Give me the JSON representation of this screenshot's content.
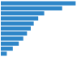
{
  "chart_data": {
    "type": "bar",
    "orientation": "horizontal",
    "values": [
      100,
      82,
      58,
      50,
      44,
      40,
      35,
      30,
      24,
      16,
      8
    ],
    "color": "#2e86c8",
    "xlim": [
      0,
      105
    ],
    "tick_labels": false,
    "grid": false
  }
}
